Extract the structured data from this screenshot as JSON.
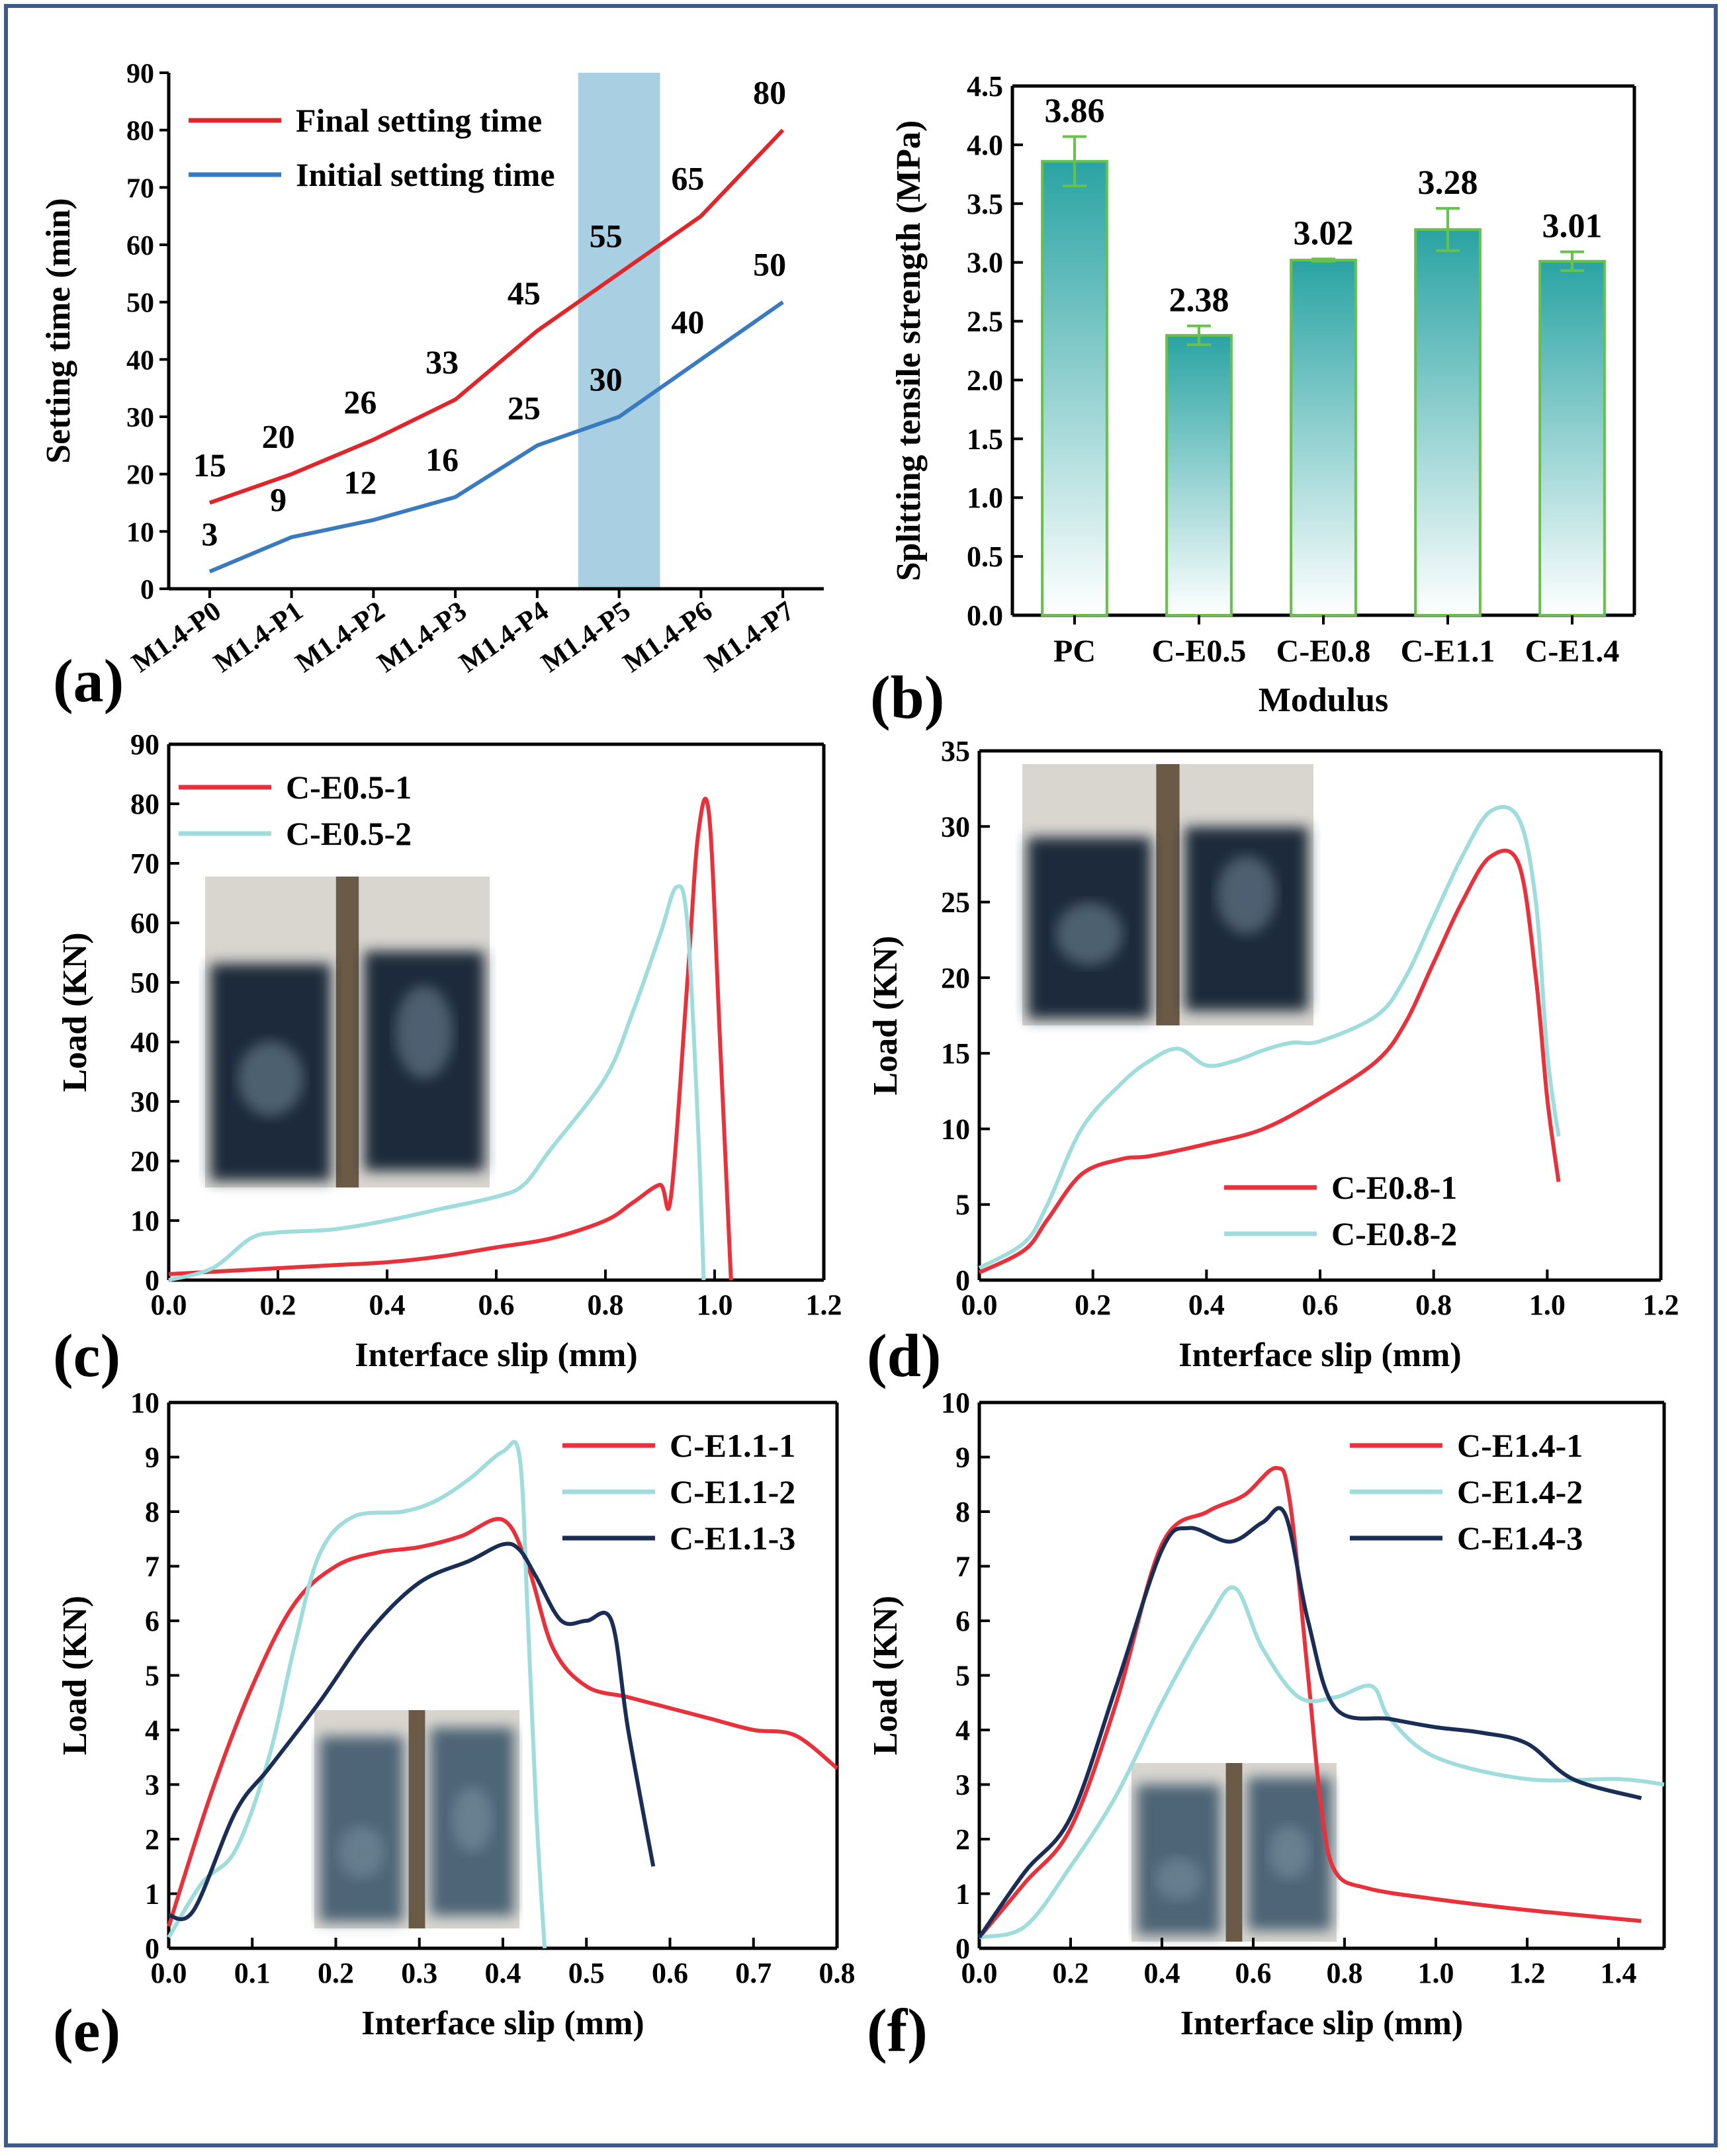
{
  "chart_data": [
    {
      "id": "a",
      "type": "line",
      "panel_label": "(a)",
      "title": "",
      "xlabel": "",
      "ylabel": "Setting time (min)",
      "categories": [
        "M1.4-P0",
        "M1.4-P1",
        "M1.4-P2",
        "M1.4-P3",
        "M1.4-P4",
        "M1.4-P5",
        "M1.4-P6",
        "M1.4-P7"
      ],
      "ylim": [
        0,
        90
      ],
      "yticks": [
        0,
        10,
        20,
        30,
        40,
        50,
        60,
        70,
        80,
        90
      ],
      "highlight_category": "M1.4-P5",
      "highlight_color": "#a9cfe3",
      "legend_position": "top-left",
      "series": [
        {
          "name": "Final setting time",
          "color": "#e0262b",
          "values": [
            15,
            20,
            26,
            33,
            45,
            55,
            65,
            80
          ],
          "data_labels": [
            "15",
            "20",
            "26",
            "33",
            "45",
            "55",
            "65",
            "80"
          ]
        },
        {
          "name": "Initial setting time",
          "color": "#3a7bbf",
          "values": [
            3,
            9,
            12,
            16,
            25,
            30,
            40,
            50
          ],
          "data_labels": [
            "3",
            "9",
            "12",
            "16",
            "25",
            "30",
            "40",
            "50"
          ]
        }
      ]
    },
    {
      "id": "b",
      "type": "bar",
      "panel_label": "(b)",
      "title": "",
      "xlabel": "Modulus",
      "ylabel": "Splitting tensile strength (MPa)",
      "categories": [
        "PC",
        "C-E0.5",
        "C-E0.8",
        "C-E1.1",
        "C-E1.4"
      ],
      "values": [
        3.86,
        2.38,
        3.02,
        3.28,
        3.01
      ],
      "data_labels": [
        "3.86",
        "2.38",
        "3.02",
        "3.28",
        "3.01"
      ],
      "errors": [
        0.21,
        0.08,
        0.01,
        0.18,
        0.08
      ],
      "ylim": [
        0,
        4.5
      ],
      "yticks": [
        "0.0",
        "0.5",
        "1.0",
        "1.5",
        "2.0",
        "2.5",
        "3.0",
        "3.5",
        "4.0",
        "4.5"
      ],
      "bar_color_top": "#2aa3a3",
      "bar_color_bottom": "#ffffff",
      "bar_edge": "#66c24a"
    },
    {
      "id": "c",
      "type": "line",
      "panel_label": "(c)",
      "xlabel": "Interface slip (mm)",
      "ylabel": "Load (KN)",
      "xlim": [
        0,
        1.2
      ],
      "ylim": [
        0,
        90
      ],
      "xticks": [
        "0.0",
        "0.2",
        "0.4",
        "0.6",
        "0.8",
        "1.0",
        "1.2"
      ],
      "yticks": [
        "0",
        "10",
        "20",
        "30",
        "40",
        "50",
        "60",
        "70",
        "80",
        "90"
      ],
      "legend_position": "top-left",
      "inset_photo": {
        "desc": "failure surface photo"
      },
      "series": [
        {
          "name": "C-E0.5-1",
          "color": "#e8313a",
          "x": [
            0,
            0.1,
            0.2,
            0.3,
            0.4,
            0.5,
            0.6,
            0.7,
            0.8,
            0.85,
            0.9,
            0.92,
            0.95,
            0.97,
            0.99,
            1.01,
            1.03
          ],
          "y": [
            1,
            1.5,
            2,
            2.5,
            3,
            4,
            5.5,
            7,
            10,
            13,
            16,
            14,
            50,
            75,
            78,
            40,
            0
          ]
        },
        {
          "name": "C-E0.5-2",
          "color": "#9fdcdc",
          "x": [
            0,
            0.08,
            0.15,
            0.2,
            0.3,
            0.4,
            0.5,
            0.6,
            0.65,
            0.7,
            0.8,
            0.85,
            0.9,
            0.93,
            0.95,
            0.97,
            0.98
          ],
          "y": [
            0,
            2,
            7,
            8,
            8.5,
            10,
            12,
            14,
            16,
            22,
            34,
            45,
            58,
            66,
            60,
            25,
            0
          ]
        }
      ]
    },
    {
      "id": "d",
      "type": "line",
      "panel_label": "(d)",
      "xlabel": "Interface slip (mm)",
      "ylabel": "Load (KN)",
      "xlim": [
        0,
        1.2
      ],
      "ylim": [
        0,
        35
      ],
      "xticks": [
        "0.0",
        "0.2",
        "0.4",
        "0.6",
        "0.8",
        "1.0",
        "1.2"
      ],
      "yticks": [
        "0",
        "5",
        "10",
        "15",
        "20",
        "25",
        "30",
        "35"
      ],
      "legend_position": "bottom-right",
      "inset_photo": {
        "desc": "failure surface photo"
      },
      "series": [
        {
          "name": "C-E0.8-1",
          "color": "#e8313a",
          "x": [
            0,
            0.08,
            0.12,
            0.18,
            0.25,
            0.3,
            0.4,
            0.5,
            0.6,
            0.7,
            0.75,
            0.8,
            0.85,
            0.9,
            0.95,
            0.98,
            1.0,
            1.02
          ],
          "y": [
            0.5,
            2,
            4,
            7,
            8,
            8.2,
            9,
            10,
            12,
            14.5,
            17,
            21,
            25,
            28,
            27.5,
            20,
            12,
            6.5
          ]
        },
        {
          "name": "C-E0.8-2",
          "color": "#9fdcdc",
          "x": [
            0,
            0.08,
            0.12,
            0.18,
            0.25,
            0.3,
            0.35,
            0.4,
            0.45,
            0.5,
            0.55,
            0.6,
            0.7,
            0.75,
            0.8,
            0.85,
            0.9,
            0.95,
            0.98,
            1.0,
            1.02
          ],
          "y": [
            0.8,
            2.5,
            5,
            10,
            13,
            14.5,
            15.3,
            14.2,
            14.5,
            15.2,
            15.7,
            15.8,
            17.5,
            20,
            24,
            28,
            31,
            30.5,
            25,
            15,
            9.5
          ]
        }
      ]
    },
    {
      "id": "e",
      "type": "line",
      "panel_label": "(e)",
      "xlabel": "Interface slip (mm)",
      "ylabel": "Load (KN)",
      "xlim": [
        0,
        0.8
      ],
      "ylim": [
        0,
        10
      ],
      "xticks": [
        "0.0",
        "0.1",
        "0.2",
        "0.3",
        "0.4",
        "0.5",
        "0.6",
        "0.7",
        "0.8"
      ],
      "yticks": [
        "0",
        "1",
        "2",
        "3",
        "4",
        "5",
        "6",
        "7",
        "8",
        "9",
        "10"
      ],
      "legend_position": "top-right",
      "inset_photo": {
        "desc": "failure surface photo"
      },
      "series": [
        {
          "name": "C-E1.1-1",
          "color": "#e8313a",
          "x": [
            0,
            0.05,
            0.1,
            0.15,
            0.2,
            0.25,
            0.3,
            0.35,
            0.4,
            0.43,
            0.46,
            0.5,
            0.55,
            0.6,
            0.65,
            0.7,
            0.75,
            0.8
          ],
          "y": [
            0.4,
            2.8,
            4.8,
            6.3,
            7.0,
            7.25,
            7.35,
            7.55,
            7.85,
            7.0,
            5.5,
            4.8,
            4.6,
            4.4,
            4.2,
            4.0,
            3.9,
            3.3
          ]
        },
        {
          "name": "C-E1.1-2",
          "color": "#9fdcdc",
          "x": [
            0,
            0.04,
            0.08,
            0.12,
            0.15,
            0.18,
            0.22,
            0.28,
            0.32,
            0.36,
            0.4,
            0.42,
            0.43,
            0.44,
            0.45
          ],
          "y": [
            0.2,
            1.2,
            1.8,
            3.5,
            5.5,
            7.2,
            7.9,
            8.0,
            8.2,
            8.6,
            9.1,
            9.0,
            6.0,
            2.5,
            0
          ]
        },
        {
          "name": "C-E1.1-3",
          "color": "#1a2e55",
          "x": [
            0,
            0.03,
            0.08,
            0.12,
            0.18,
            0.24,
            0.3,
            0.36,
            0.4,
            0.42,
            0.44,
            0.47,
            0.5,
            0.53,
            0.55,
            0.58
          ],
          "y": [
            0.6,
            0.7,
            2.5,
            3.3,
            4.5,
            5.8,
            6.7,
            7.1,
            7.4,
            7.3,
            6.8,
            6.0,
            6.0,
            6.0,
            4.0,
            1.5
          ]
        }
      ]
    },
    {
      "id": "f",
      "type": "line",
      "panel_label": "(f)",
      "xlabel": "Interface slip (mm)",
      "ylabel": "Load (KN)",
      "xlim": [
        0,
        1.5
      ],
      "ylim": [
        0,
        10
      ],
      "xticks": [
        "0.0",
        "0.2",
        "0.4",
        "0.6",
        "0.8",
        "1.0",
        "1.2",
        "1.4"
      ],
      "yticks": [
        "0",
        "1",
        "2",
        "3",
        "4",
        "5",
        "6",
        "7",
        "8",
        "9",
        "10"
      ],
      "legend_position": "top-right",
      "inset_photo": {
        "desc": "failure surface photo"
      },
      "series": [
        {
          "name": "C-E1.4-1",
          "color": "#e8313a",
          "x": [
            0,
            0.1,
            0.2,
            0.3,
            0.4,
            0.5,
            0.58,
            0.65,
            0.68,
            0.72,
            0.75,
            0.78,
            0.85,
            1.0,
            1.2,
            1.45
          ],
          "y": [
            0.2,
            1.2,
            2.2,
            4.5,
            7.4,
            8.0,
            8.3,
            8.8,
            8.2,
            5.0,
            2.5,
            1.4,
            1.1,
            0.9,
            0.7,
            0.5
          ]
        },
        {
          "name": "C-E1.4-2",
          "color": "#9fdcdc",
          "x": [
            0,
            0.1,
            0.2,
            0.3,
            0.4,
            0.5,
            0.56,
            0.62,
            0.7,
            0.78,
            0.86,
            0.9,
            1.0,
            1.2,
            1.4,
            1.5
          ],
          "y": [
            0.2,
            0.4,
            1.5,
            2.8,
            4.5,
            6.0,
            6.6,
            5.5,
            4.6,
            4.6,
            4.8,
            4.2,
            3.5,
            3.1,
            3.1,
            3.0
          ]
        },
        {
          "name": "C-E1.4-3",
          "color": "#1a2e55",
          "x": [
            0,
            0.1,
            0.2,
            0.3,
            0.4,
            0.46,
            0.55,
            0.62,
            0.67,
            0.72,
            0.78,
            0.9,
            1.0,
            1.1,
            1.2,
            1.3,
            1.45
          ],
          "y": [
            0.2,
            1.4,
            2.4,
            4.8,
            7.3,
            7.7,
            7.45,
            7.8,
            7.95,
            6.0,
            4.4,
            4.2,
            4.05,
            3.95,
            3.75,
            3.1,
            2.75
          ]
        }
      ]
    }
  ]
}
